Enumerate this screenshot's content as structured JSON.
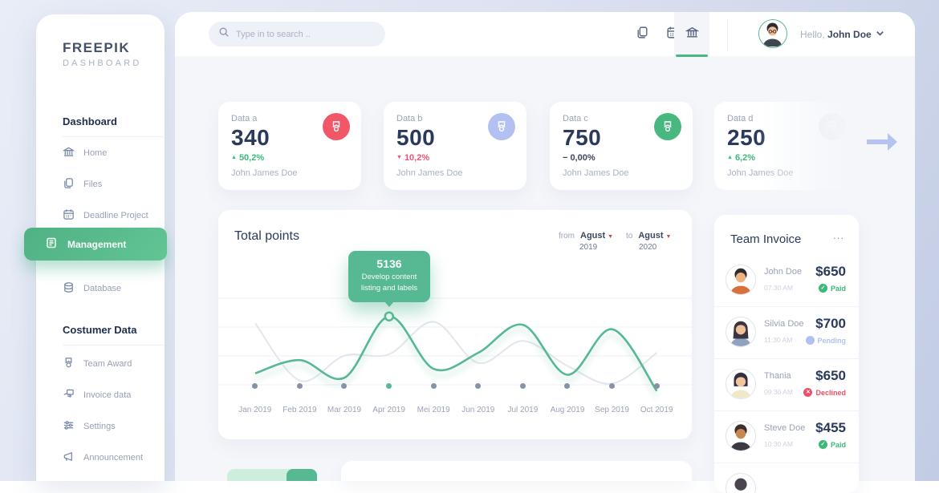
{
  "brand": {
    "line1": "FREEPIK",
    "line2": "DASHBOARD"
  },
  "accent_colors": {
    "green": "#57b894",
    "red": "#ee5372",
    "periwinkle": "#b3c1f2",
    "navy": "#2b3a5c"
  },
  "sidebar": {
    "section1_title": "Dashboard",
    "items": [
      {
        "label": "Home",
        "icon": "bank-home-icon"
      },
      {
        "label": "Files",
        "icon": "files-icon"
      },
      {
        "label": "Deadline Project",
        "icon": "calendar-icon"
      },
      {
        "label": "Management",
        "icon": "clipboard-icon",
        "active": true
      },
      {
        "label": "Database",
        "icon": "database-icon"
      }
    ],
    "section2_title": "Costumer Data",
    "items2": [
      {
        "label": "Team Award",
        "icon": "medal-icon"
      },
      {
        "label": "Invoice data",
        "icon": "invoice-hand-icon"
      },
      {
        "label": "Settings",
        "icon": "sliders-icon"
      },
      {
        "label": "Announcement",
        "icon": "megaphone-icon"
      }
    ]
  },
  "header": {
    "search_placeholder": "Type in to search ..",
    "tabs": [
      {
        "icon": "files-icon",
        "active": false
      },
      {
        "icon": "calendar-icon",
        "active": false
      },
      {
        "icon": "bank-home-icon",
        "active": true
      }
    ],
    "greeting_prefix": "Hello,",
    "user_name": "John Doe"
  },
  "stat_cards": [
    {
      "label": "Data a",
      "value": "340",
      "delta_icon": "▲",
      "delta": "50,2%",
      "owner": "John James Doe",
      "badge_color": "#f25767"
    },
    {
      "label": "Data b",
      "value": "500",
      "delta_icon": "▼",
      "delta": "10,2%",
      "owner": "John James Doe",
      "badge_color": "#b3c1f2"
    },
    {
      "label": "Data c",
      "value": "750",
      "delta_icon": "−",
      "delta": "0,00%",
      "owner": "John James Doe",
      "badge_color": "#48b780"
    },
    {
      "label": "Data d",
      "value": "250",
      "delta_icon": "▲",
      "delta": "6,2%",
      "owner": "John James Doe",
      "badge_color": "#e4e7ee"
    }
  ],
  "chart": {
    "title": "Total points",
    "from_label": "from",
    "from_value": "Agust",
    "from_year": "2019",
    "to_label": "to",
    "to_value": "Agust",
    "to_year": "2020",
    "tooltip": {
      "value": "5136",
      "line1": "Develop content",
      "line2": "listing and labels"
    }
  },
  "chart_data": {
    "type": "line",
    "title": "Total points",
    "x": [
      "Jan 2019",
      "Feb 2019",
      "Mar 2019",
      "Apr 2019",
      "Mei 2019",
      "Jun 2019",
      "Jul 2019",
      "Aug 2019",
      "Sep 2019",
      "Oct 2019"
    ],
    "series": [
      {
        "name": "total-points",
        "color": "#57b894",
        "values": [
          3200,
          3650,
          3050,
          5136,
          3350,
          3900,
          4850,
          3150,
          4700,
          2600
        ]
      },
      {
        "name": "previous-period",
        "color": "#e3e6ee",
        "values": [
          4900,
          2950,
          3800,
          3850,
          4950,
          3550,
          4300,
          3450,
          2850,
          3900
        ]
      }
    ],
    "ylim": [
      2400,
      5400
    ],
    "grid": true,
    "legend": false,
    "annotation": {
      "x": "Apr 2019",
      "value": 5136,
      "label": "Develop content listing and labels"
    },
    "highlighted_tick": "Apr 2019"
  },
  "invoice_panel": {
    "title": "Team Invoice",
    "menu": "...",
    "rows": [
      {
        "name": "John Doe",
        "time": "07:30 AM",
        "amount": "$650",
        "status": "Paid",
        "status_icon": "✓"
      },
      {
        "name": "Silvia Doe",
        "time": "11:30 AM",
        "amount": "$700",
        "status": "Pending",
        "status_icon": ""
      },
      {
        "name": "Thania",
        "time": "09:30 AM",
        "amount": "$650",
        "status": "Declined",
        "status_icon": "✕"
      },
      {
        "name": "Steve Doe",
        "time": "10:30 AM",
        "amount": "$455",
        "status": "Paid",
        "status_icon": "✓"
      }
    ]
  }
}
